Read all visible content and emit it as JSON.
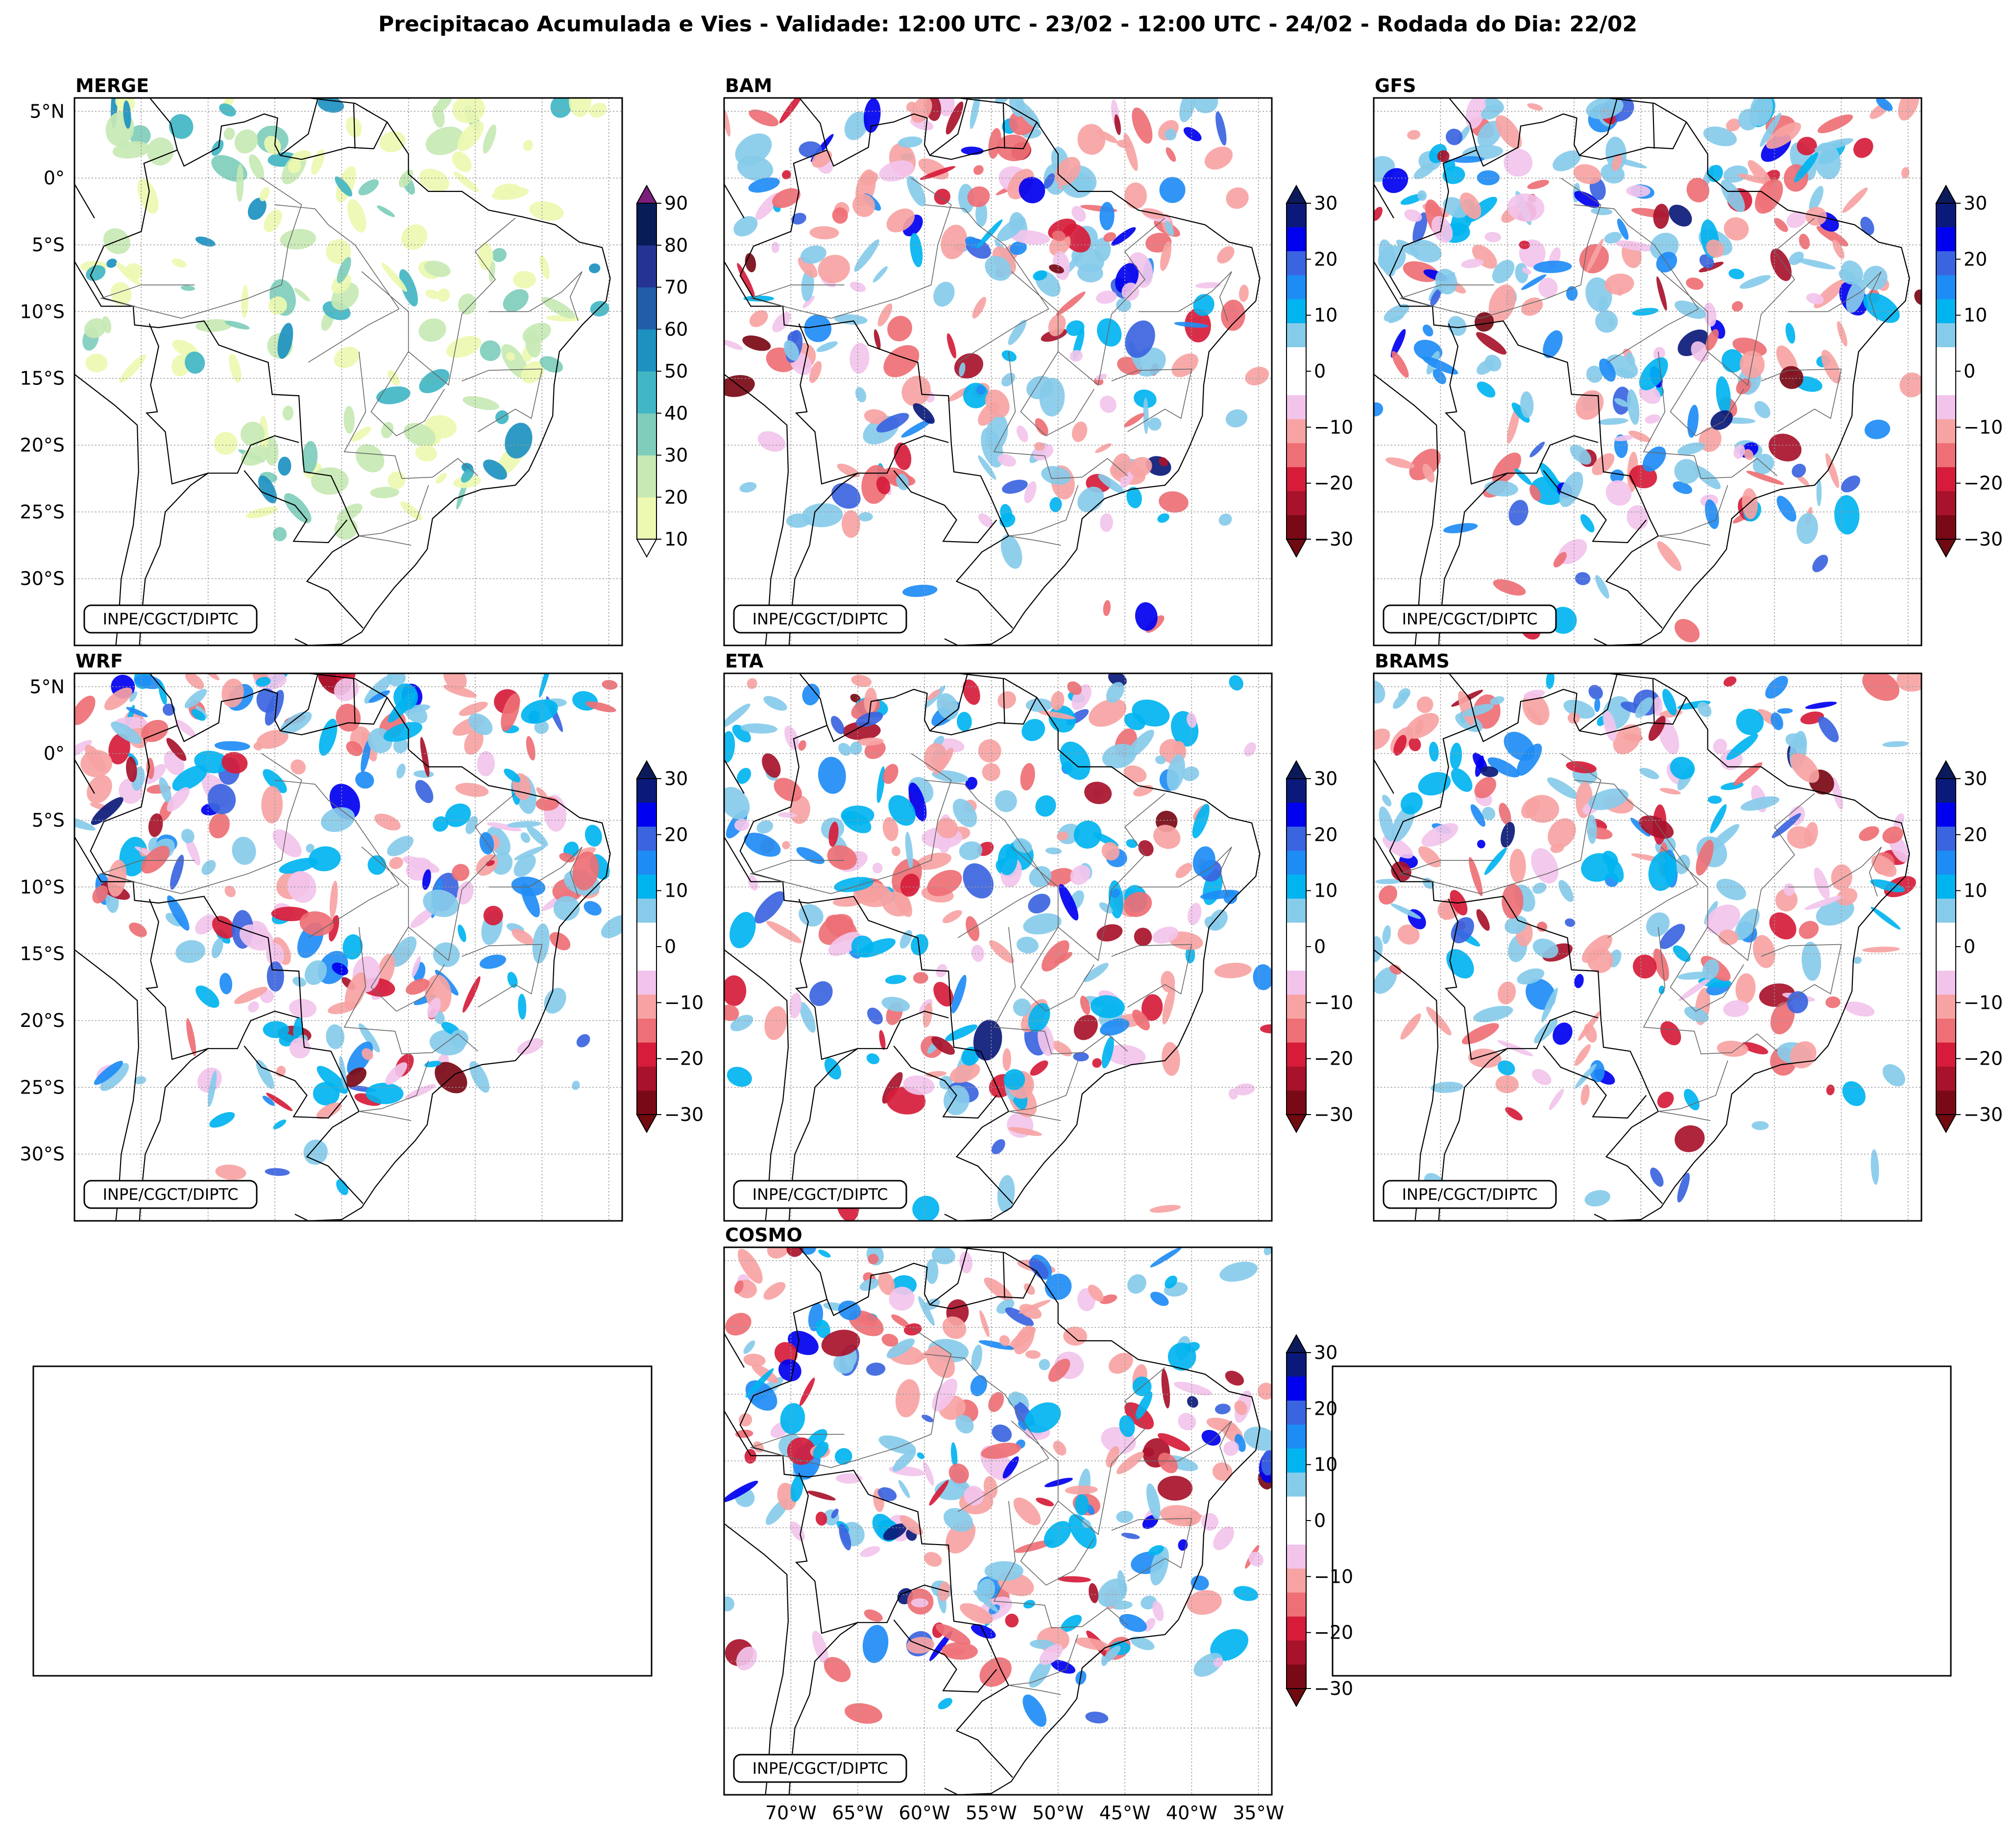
{
  "figure": {
    "title": "Precipitacao Acumulada e Vies - Validade: 12:00 UTC - 23/02 - 12:00 UTC - 24/02 - Rodada do Dia: 22/02",
    "credit": "INPE/CGCT/DIPTC"
  },
  "axes": {
    "lat_labels": [
      "5°N",
      "0°",
      "5°S",
      "10°S",
      "15°S",
      "20°S",
      "25°S",
      "30°S"
    ],
    "lat_values": [
      5,
      0,
      -5,
      -10,
      -15,
      -20,
      -25,
      -30
    ],
    "lon_labels": [
      "70°W",
      "65°W",
      "60°W",
      "55°W",
      "50°W",
      "45°W",
      "40°W",
      "35°W"
    ],
    "lon_values": [
      -70,
      -65,
      -60,
      -55,
      -50,
      -45,
      -40,
      -35
    ],
    "lon_range": [
      -75,
      -34
    ],
    "lat_range": [
      -35,
      6
    ]
  },
  "panels": [
    {
      "id": "merge",
      "name": "MERGE",
      "kind": "precip",
      "seed": 11
    },
    {
      "id": "bam",
      "name": "BAM",
      "kind": "bias",
      "seed": 23
    },
    {
      "id": "gfs",
      "name": "GFS",
      "kind": "bias",
      "seed": 37
    },
    {
      "id": "wrf",
      "name": "WRF",
      "kind": "bias",
      "seed": 41
    },
    {
      "id": "eta",
      "name": "ETA",
      "kind": "bias",
      "seed": 53
    },
    {
      "id": "brams",
      "name": "BRAMS",
      "kind": "bias",
      "seed": 67
    },
    {
      "id": "cosmo",
      "name": "COSMO",
      "kind": "bias",
      "seed": 79
    }
  ],
  "colorbars": {
    "precip": {
      "ticks": [
        "10",
        "20",
        "30",
        "40",
        "50",
        "60",
        "70",
        "80",
        "90"
      ],
      "colors": [
        "#edf8b1",
        "#c7e9b4",
        "#7fcdbb",
        "#41b6c4",
        "#1d91c0",
        "#225ea8",
        "#253494",
        "#081d58"
      ],
      "under": "#ffffff",
      "over": "#7b1f7b"
    },
    "bias": {
      "ticks": [
        "30",
        "20",
        "10",
        "0",
        "−10",
        "−20",
        "−30"
      ],
      "colors": [
        "#0b1a7a",
        "#0000f0",
        "#3b64e0",
        "#1e8cf5",
        "#00b4f0",
        "#87cbea",
        "#ffffff",
        "#ffffff",
        "#f2c4ec",
        "#f7a3a3",
        "#ee6f75",
        "#d61c3a",
        "#a8122b",
        "#7a0916"
      ],
      "over": "#0b1a5a",
      "under": "#6e0a10"
    }
  }
}
